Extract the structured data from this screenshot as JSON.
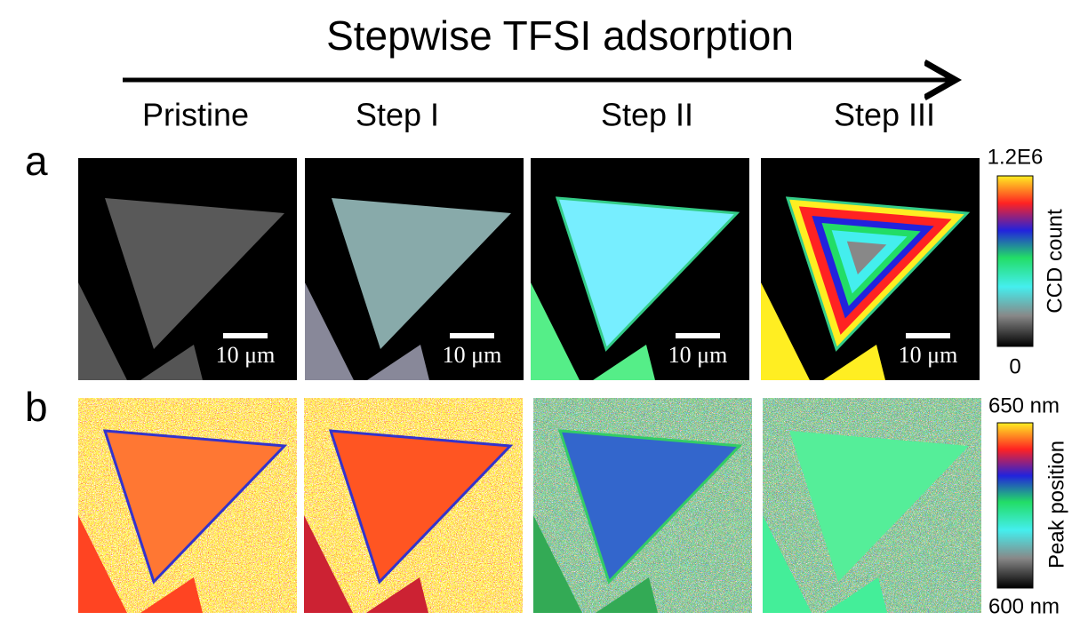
{
  "title": "Stepwise TFSI adsorption",
  "columns": [
    "Pristine",
    "Step I",
    "Step II",
    "Step III"
  ],
  "rows": [
    {
      "label": "a",
      "scale_bars": [
        "10 μm",
        "10 μm",
        "10 μm",
        "10 μm"
      ],
      "colorbar": {
        "max": "1.2E6",
        "min": "0",
        "label": "CCD count"
      }
    },
    {
      "label": "b",
      "colorbar": {
        "max": "650 nm",
        "min": "600 nm",
        "label": "Peak position"
      }
    }
  ]
}
